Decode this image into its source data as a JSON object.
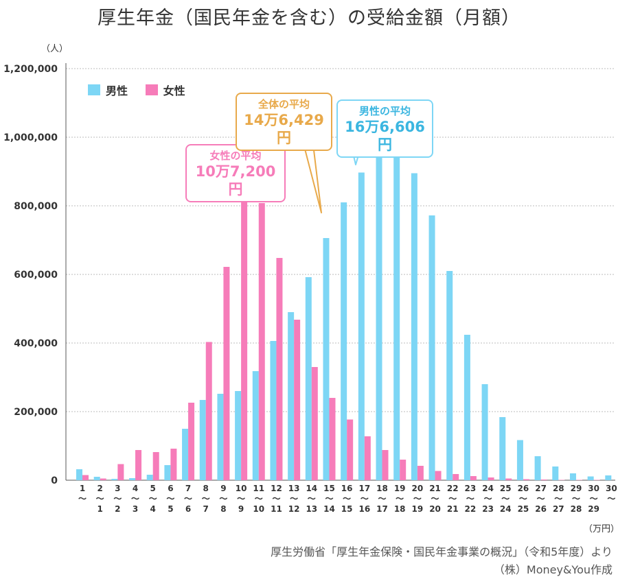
{
  "page": {
    "title": "厚生年金（国民年金を含む）の受給金額（月額）",
    "y_unit": "（人）",
    "x_unit": "（万円）",
    "source_line1": "厚生労働省「厚生年金保険・国民年金事業の概況」（令和5年度）より",
    "source_line2": "（株）Money&You作成"
  },
  "colors": {
    "male": "#7dd6f5",
    "female": "#f67cb9",
    "overall": "#e8a94a",
    "grid": "#bbbbbb"
  },
  "legend": {
    "male": "男性",
    "female": "女性"
  },
  "callouts": {
    "female": {
      "label": "女性の平均",
      "value": "10万7,200円"
    },
    "overall": {
      "label": "全体の平均",
      "value": "14万6,429円"
    },
    "male": {
      "label": "男性の平均",
      "value": "16万6,606円"
    }
  },
  "chart_data": {
    "type": "bar",
    "title": "厚生年金（国民年金を含む）の受給金額（月額）",
    "xlabel": "（万円）",
    "ylabel": "（人）",
    "ylim": [
      0,
      1200000
    ],
    "yticks": [
      0,
      200000,
      400000,
      600000,
      800000,
      1000000,
      1200000
    ],
    "ytick_labels": [
      "0",
      "200,000",
      "400,000",
      "600,000",
      "800,000",
      "1,000,000",
      "1,200,000"
    ],
    "categories": [
      [
        "1",
        "〜",
        ""
      ],
      [
        "2",
        "〜",
        "1"
      ],
      [
        "3",
        "〜",
        "2"
      ],
      [
        "4",
        "〜",
        "3"
      ],
      [
        "5",
        "〜",
        "4"
      ],
      [
        "6",
        "〜",
        "5"
      ],
      [
        "7",
        "〜",
        "6"
      ],
      [
        "8",
        "〜",
        "7"
      ],
      [
        "9",
        "〜",
        "8"
      ],
      [
        "10",
        "〜",
        "9"
      ],
      [
        "11",
        "〜",
        "10"
      ],
      [
        "12",
        "〜",
        "11"
      ],
      [
        "13",
        "〜",
        "12"
      ],
      [
        "14",
        "〜",
        "13"
      ],
      [
        "15",
        "〜",
        "14"
      ],
      [
        "16",
        "〜",
        "15"
      ],
      [
        "17",
        "〜",
        "16"
      ],
      [
        "18",
        "〜",
        "17"
      ],
      [
        "19",
        "〜",
        "18"
      ],
      [
        "20",
        "〜",
        "19"
      ],
      [
        "21",
        "〜",
        "20"
      ],
      [
        "22",
        "〜",
        "21"
      ],
      [
        "23",
        "〜",
        "22"
      ],
      [
        "24",
        "〜",
        "23"
      ],
      [
        "25",
        "〜",
        "24"
      ],
      [
        "26",
        "〜",
        "25"
      ],
      [
        "27",
        "〜",
        "26"
      ],
      [
        "28",
        "〜",
        "27"
      ],
      [
        "29",
        "〜",
        "28"
      ],
      [
        "30",
        "〜",
        "29"
      ],
      [
        "30",
        "〜",
        ""
      ]
    ],
    "series": [
      {
        "name": "男性",
        "values": [
          32000,
          10000,
          4000,
          6000,
          16000,
          44000,
          150000,
          234000,
          252000,
          260000,
          318000,
          406000,
          490000,
          592000,
          706000,
          810000,
          897000,
          965000,
          963000,
          895000,
          772000,
          610000,
          424000,
          280000,
          184000,
          117000,
          70000,
          40000,
          20000,
          11000,
          14000
        ]
      },
      {
        "name": "女性",
        "values": [
          15000,
          5000,
          47000,
          88000,
          82000,
          92000,
          226000,
          403000,
          622000,
          820000,
          808000,
          648000,
          468000,
          330000,
          240000,
          177000,
          128000,
          88000,
          60000,
          42000,
          27000,
          18000,
          12000,
          8000,
          5000,
          3000,
          2000,
          1000,
          1000,
          1000,
          0
        ]
      }
    ],
    "grid": true,
    "legend_position": "top-left"
  }
}
